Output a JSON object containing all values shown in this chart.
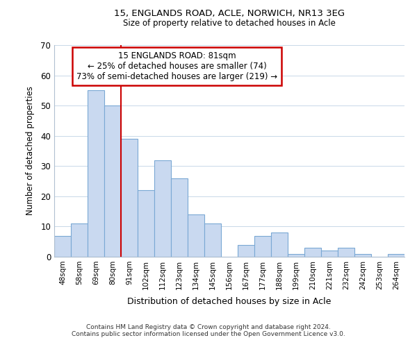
{
  "title": "15, ENGLANDS ROAD, ACLE, NORWICH, NR13 3EG",
  "subtitle": "Size of property relative to detached houses in Acle",
  "xlabel": "Distribution of detached houses by size in Acle",
  "ylabel": "Number of detached properties",
  "bin_labels": [
    "48sqm",
    "58sqm",
    "69sqm",
    "80sqm",
    "91sqm",
    "102sqm",
    "112sqm",
    "123sqm",
    "134sqm",
    "145sqm",
    "156sqm",
    "167sqm",
    "177sqm",
    "188sqm",
    "199sqm",
    "210sqm",
    "221sqm",
    "232sqm",
    "242sqm",
    "253sqm",
    "264sqm"
  ],
  "bar_heights": [
    7,
    11,
    55,
    50,
    39,
    22,
    32,
    26,
    14,
    11,
    0,
    4,
    7,
    8,
    1,
    3,
    2,
    3,
    1,
    0,
    1
  ],
  "bar_color": "#c9d9f0",
  "bar_edge_color": "#7aa8d4",
  "vline_color": "#cc0000",
  "ylim": [
    0,
    70
  ],
  "yticks": [
    0,
    10,
    20,
    30,
    40,
    50,
    60,
    70
  ],
  "annotation_title": "15 ENGLANDS ROAD: 81sqm",
  "annotation_line1": "← 25% of detached houses are smaller (74)",
  "annotation_line2": "73% of semi-detached houses are larger (219) →",
  "footer1": "Contains HM Land Registry data © Crown copyright and database right 2024.",
  "footer2": "Contains public sector information licensed under the Open Government Licence v3.0.",
  "background_color": "#ffffff",
  "grid_color": "#c8d8e8"
}
